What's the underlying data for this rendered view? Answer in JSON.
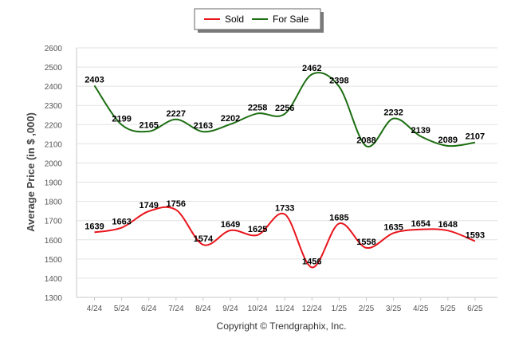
{
  "chart_data": {
    "type": "line",
    "categories": [
      "4/24",
      "5/24",
      "6/24",
      "7/24",
      "8/24",
      "9/24",
      "10/24",
      "11/24",
      "12/24",
      "1/25",
      "2/25",
      "3/25",
      "4/25",
      "5/25",
      "6/25"
    ],
    "series": [
      {
        "name": "Sold",
        "color": "#e8141b",
        "values": [
          1639,
          1663,
          1749,
          1756,
          1574,
          1649,
          1625,
          1733,
          1456,
          1685,
          1558,
          1635,
          1654,
          1648,
          1593
        ]
      },
      {
        "name": "For Sale",
        "color": "#1c6e12",
        "values": [
          2403,
          2199,
          2165,
          2227,
          2163,
          2202,
          2258,
          2256,
          2462,
          2398,
          2088,
          2232,
          2139,
          2089,
          2107
        ]
      }
    ],
    "ylabel": "Average Price (in $ ,000)",
    "ylim": [
      1300,
      2600
    ],
    "yticks": [
      1300,
      1400,
      1500,
      1600,
      1700,
      1800,
      1900,
      2000,
      2100,
      2200,
      2300,
      2400,
      2500,
      2600
    ],
    "grid": true,
    "legend_position": "top-center"
  },
  "credit": "Copyright © Trendgraphix, Inc."
}
